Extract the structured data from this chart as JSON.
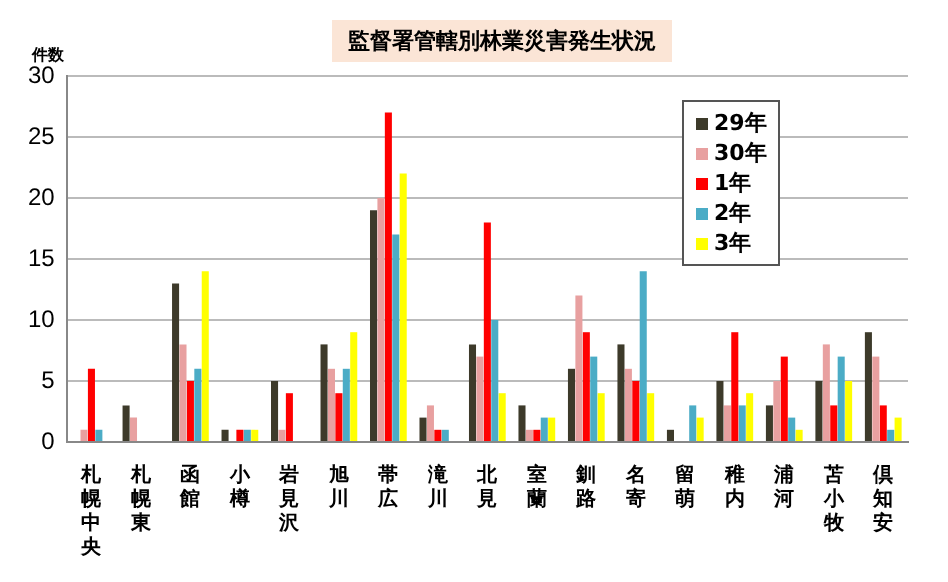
{
  "chart_data": {
    "type": "bar",
    "title": "監督署管轄別林業災害発生状況",
    "ylabel": "件数",
    "categories": [
      "札幌中央",
      "札幌東",
      "函館",
      "小樽",
      "岩見沢",
      "旭川",
      "帯広",
      "滝川",
      "北見",
      "室蘭",
      "釧路",
      "名寄",
      "留萌",
      "稚内",
      "浦河",
      "苫小牧",
      "倶知安"
    ],
    "series": [
      {
        "name": "29年",
        "color": "#3d3a2a",
        "values": [
          0,
          3,
          13,
          1,
          5,
          8,
          19,
          2,
          8,
          3,
          6,
          8,
          1,
          5,
          3,
          5,
          9
        ]
      },
      {
        "name": "30年",
        "color": "#e8a0a0",
        "values": [
          1,
          2,
          8,
          0,
          1,
          6,
          20,
          3,
          7,
          1,
          12,
          6,
          0,
          3,
          5,
          8,
          7
        ]
      },
      {
        "name": "1年",
        "color": "#ff0000",
        "values": [
          6,
          0,
          5,
          1,
          4,
          4,
          27,
          1,
          18,
          1,
          9,
          5,
          0,
          9,
          7,
          3,
          3
        ]
      },
      {
        "name": "2年",
        "color": "#4bacc6",
        "values": [
          1,
          0,
          6,
          1,
          0,
          6,
          17,
          1,
          10,
          2,
          7,
          14,
          3,
          3,
          2,
          7,
          1
        ]
      },
      {
        "name": "3年",
        "color": "#ffff00",
        "values": [
          0,
          0,
          14,
          1,
          0,
          9,
          22,
          0,
          4,
          2,
          4,
          4,
          2,
          4,
          1,
          5,
          2
        ]
      }
    ],
    "ylim": [
      0,
      30
    ],
    "yticks": [
      0,
      5,
      10,
      15,
      20,
      25,
      30
    ],
    "grid": "y",
    "legend": "top right"
  }
}
